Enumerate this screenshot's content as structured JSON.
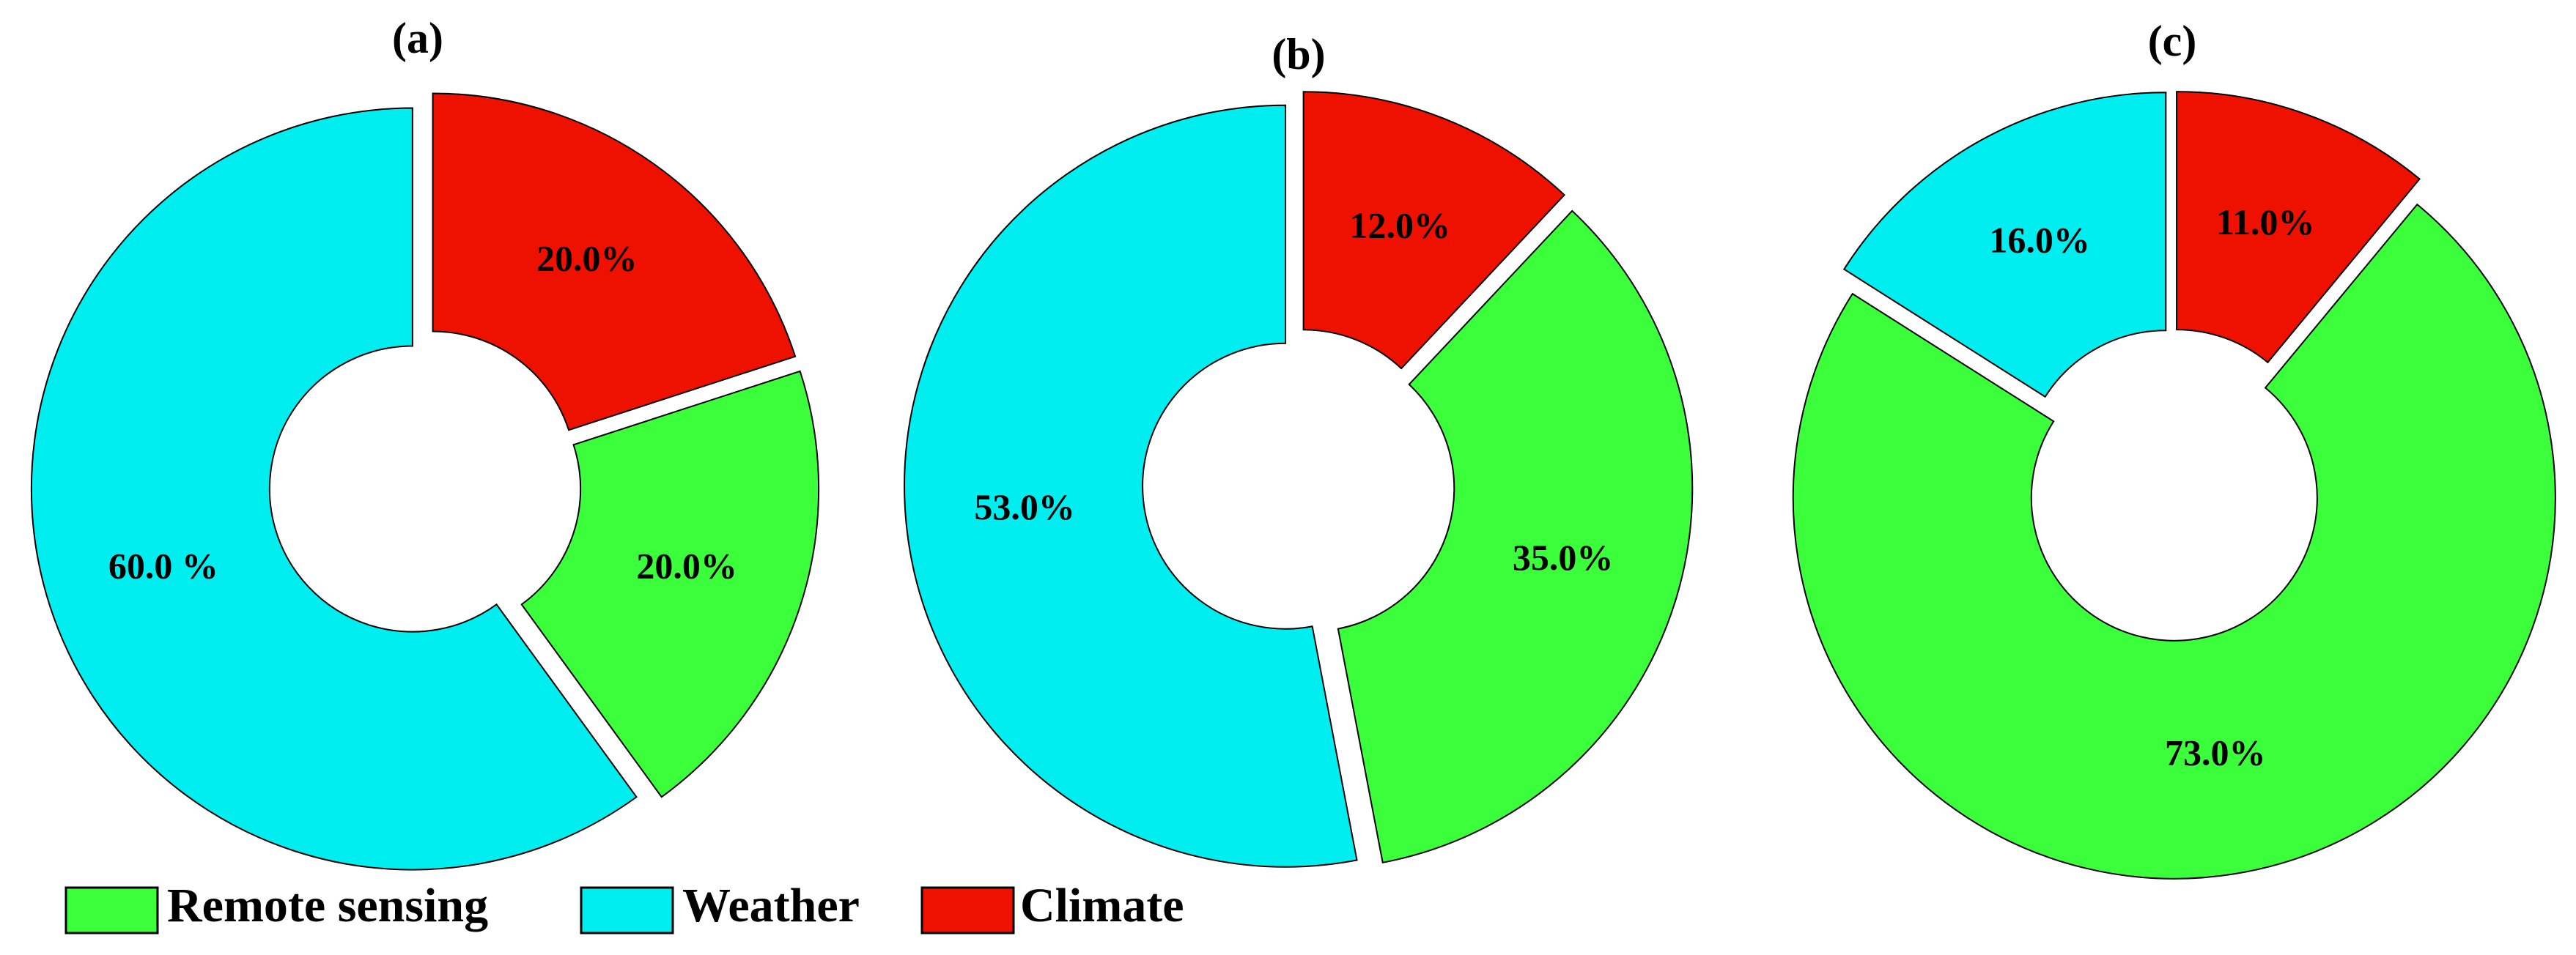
{
  "chart_data": [
    {
      "type": "pie",
      "title": "(a)",
      "categories": [
        "Climate",
        "Remote sensing",
        "Weather"
      ],
      "values": [
        20,
        20,
        60
      ],
      "value_labels": [
        "20.0%",
        "20.0%",
        "60.0 %"
      ],
      "colors": [
        "#ee1100",
        "#3cff3c",
        "#00eef0"
      ]
    },
    {
      "type": "pie",
      "title": "(b)",
      "categories": [
        "Climate",
        "Remote sensing",
        "Weather"
      ],
      "values": [
        12,
        35,
        53
      ],
      "value_labels": [
        "12.0%",
        "35.0%",
        "53.0%"
      ],
      "colors": [
        "#ee1100",
        "#3cff3c",
        "#00eef0"
      ]
    },
    {
      "type": "pie",
      "title": "(c)",
      "categories": [
        "Climate",
        "Remote sensing",
        "Weather"
      ],
      "values": [
        11,
        73,
        16
      ],
      "value_labels": [
        "11.0%",
        "73.0%",
        "16.0%"
      ],
      "colors": [
        "#ee1100",
        "#3cff3c",
        "#00eef0"
      ]
    }
  ]
}
